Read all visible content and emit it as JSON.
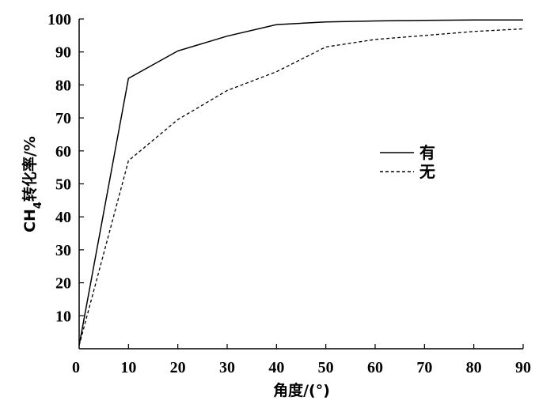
{
  "chart_data": {
    "type": "line",
    "title": "",
    "xlabel": "角度/(°)",
    "ylabel_main": "CH",
    "ylabel_sub": "4",
    "ylabel_rest": "转化率/%",
    "xlim": [
      0,
      90
    ],
    "ylim": [
      0,
      100
    ],
    "x_ticks": [
      0,
      10,
      20,
      30,
      40,
      50,
      60,
      70,
      80,
      90
    ],
    "x_tick_labels": [
      "0",
      "10",
      "20",
      "30",
      "40",
      "50",
      "60",
      "70",
      "80",
      "90"
    ],
    "y_ticks": [
      10,
      20,
      30,
      40,
      50,
      60,
      70,
      80,
      90,
      100
    ],
    "y_tick_labels": [
      "10",
      "20",
      "30",
      "40",
      "50",
      "60",
      "70",
      "80",
      "90",
      "100"
    ],
    "grid": false,
    "legend_position": "right",
    "series": [
      {
        "name": "有",
        "style": "solid",
        "color": "#000000",
        "x": [
          0,
          10,
          20,
          30,
          40,
          50,
          60,
          70,
          80,
          90
        ],
        "y": [
          1,
          82,
          90.3,
          94.8,
          98.3,
          99.1,
          99.4,
          99.6,
          99.7,
          99.7
        ]
      },
      {
        "name": "无",
        "style": "dashed",
        "color": "#000000",
        "x": [
          0,
          10,
          20,
          30,
          40,
          50,
          60,
          70,
          80,
          90
        ],
        "y": [
          1,
          57,
          69.5,
          78.3,
          84,
          91.5,
          93.8,
          95,
          96.2,
          97
        ]
      }
    ]
  }
}
